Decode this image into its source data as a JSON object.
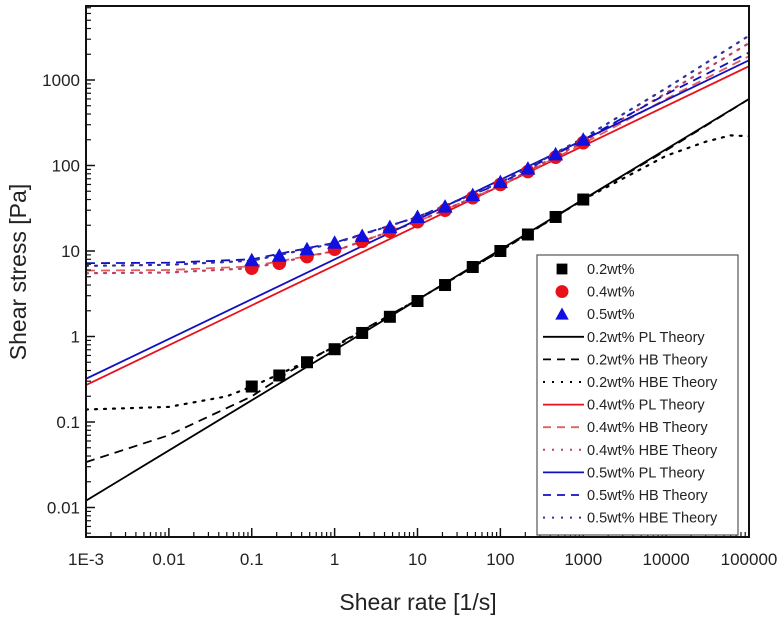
{
  "chart_data": {
    "type": "scatter",
    "title": "",
    "xlabel": "Shear rate [1/s]",
    "ylabel": "Shear stress [Pa]",
    "xscale": "log",
    "yscale": "log",
    "xlim": [
      0.001,
      100000
    ],
    "ylim": [
      0.005,
      4000
    ],
    "x_ticks": [
      0.001,
      0.01,
      0.1,
      1,
      10,
      100,
      1000,
      10000,
      100000
    ],
    "x_tick_labels": [
      "1E-3",
      "0.01",
      "0.1",
      "1",
      "10",
      "100",
      "1000",
      "10000",
      "100000"
    ],
    "y_ticks": [
      0.01,
      0.1,
      1,
      10,
      100,
      1000
    ],
    "y_tick_labels": [
      "0.01",
      "0.1",
      "1",
      "10",
      "100",
      "1000"
    ],
    "grid": false,
    "legend_position": "bottom-right",
    "series": [
      {
        "name": "0.2wt%",
        "kind": "marker",
        "marker": "square",
        "color": "#000000",
        "x": [
          0.1,
          0.215,
          0.464,
          1,
          2.15,
          4.64,
          10,
          21.5,
          46.4,
          100,
          215,
          464,
          1000
        ],
        "y": [
          0.26,
          0.35,
          0.5,
          0.71,
          1.1,
          1.7,
          2.6,
          4.0,
          6.5,
          10,
          15.6,
          25,
          40
        ]
      },
      {
        "name": "0.4wt%",
        "kind": "marker",
        "marker": "circle",
        "color": "#e8101a",
        "x": [
          0.1,
          0.215,
          0.464,
          1,
          2.15,
          4.64,
          10,
          21.5,
          46.4,
          100,
          215,
          464,
          1000
        ],
        "y": [
          6.3,
          7.2,
          8.6,
          10.5,
          13,
          17,
          22,
          30,
          42,
          60,
          85,
          125,
          185
        ]
      },
      {
        "name": "0.5wt%",
        "kind": "marker",
        "marker": "triangle",
        "color": "#1010e0",
        "x": [
          0.1,
          0.215,
          0.464,
          1,
          2.15,
          4.64,
          10,
          21.5,
          46.4,
          100,
          215,
          464,
          1000
        ],
        "y": [
          7.8,
          8.8,
          10.5,
          12.5,
          15,
          19,
          25,
          33,
          45,
          64,
          92,
          135,
          200
        ]
      },
      {
        "name": "0.2wt% PL Theory",
        "kind": "line",
        "dash": "solid",
        "color": "#000000",
        "x": [
          0.001,
          100000
        ],
        "y": [
          0.012,
          600
        ]
      },
      {
        "name": "0.2wt% HB Theory",
        "kind": "line",
        "dash": "dashed",
        "color": "#000000",
        "x": [
          0.001,
          0.01,
          0.1,
          0.3,
          1,
          10,
          100,
          1000,
          10000,
          100000
        ],
        "y": [
          0.034,
          0.07,
          0.2,
          0.4,
          0.78,
          2.7,
          10,
          40,
          150,
          600
        ]
      },
      {
        "name": "0.2wt% HBE Theory",
        "kind": "line",
        "dash": "dotted",
        "color": "#000000",
        "x": [
          0.001,
          0.01,
          0.05,
          0.1,
          0.3,
          1,
          10,
          100,
          1000,
          10000,
          30000,
          60000,
          100000
        ],
        "y": [
          0.14,
          0.15,
          0.2,
          0.26,
          0.42,
          0.76,
          2.7,
          10,
          40,
          130,
          190,
          225,
          220
        ]
      },
      {
        "name": "0.4wt% PL Theory",
        "kind": "line",
        "dash": "solid",
        "color": "#e8101a",
        "x": [
          0.001,
          100000
        ],
        "y": [
          0.27,
          1450
        ]
      },
      {
        "name": "0.4wt% HB Theory",
        "kind": "line",
        "dash": "dashed",
        "color": "#e06060",
        "x": [
          0.001,
          0.01,
          0.1,
          1,
          10,
          100,
          1000,
          10000,
          100000
        ],
        "y": [
          5.9,
          6.0,
          6.6,
          10,
          22,
          58,
          180,
          600,
          1900
        ]
      },
      {
        "name": "0.4wt% HBE Theory",
        "kind": "line",
        "dash": "dotted",
        "color": "#c04060",
        "x": [
          0.001,
          0.01,
          0.1,
          1,
          10,
          100,
          1000,
          10000,
          100000
        ],
        "y": [
          5.5,
          5.6,
          6.3,
          10,
          22,
          58,
          190,
          700,
          2700
        ]
      },
      {
        "name": "0.5wt% PL Theory",
        "kind": "line",
        "dash": "solid",
        "color": "#1010c0",
        "x": [
          0.001,
          100000
        ],
        "y": [
          0.32,
          1700
        ]
      },
      {
        "name": "0.5wt% HB Theory",
        "kind": "line",
        "dash": "dashed",
        "color": "#1010c0",
        "x": [
          0.001,
          0.01,
          0.1,
          1,
          10,
          100,
          1000,
          10000,
          100000
        ],
        "y": [
          7.2,
          7.3,
          8.0,
          12.5,
          25,
          62,
          200,
          680,
          2100
        ]
      },
      {
        "name": "0.5wt% HBE Theory",
        "kind": "line",
        "dash": "dotted",
        "color": "#3030a0",
        "x": [
          0.001,
          0.01,
          0.1,
          1,
          10,
          100,
          1000,
          10000,
          100000
        ],
        "y": [
          6.7,
          6.9,
          7.7,
          12.3,
          25,
          63,
          210,
          800,
          3300
        ]
      }
    ],
    "legend": [
      "0.2wt%",
      "0.4wt%",
      "0.5wt%",
      "0.2wt% PL Theory",
      "0.2wt% HB Theory",
      "0.2wt% HBE Theory",
      "0.4wt% PL Theory",
      "0.4wt% HB Theory",
      "0.4wt% HBE Theory",
      "0.5wt% PL Theory",
      "0.5wt% HB Theory",
      "0.5wt% HBE Theory"
    ]
  }
}
